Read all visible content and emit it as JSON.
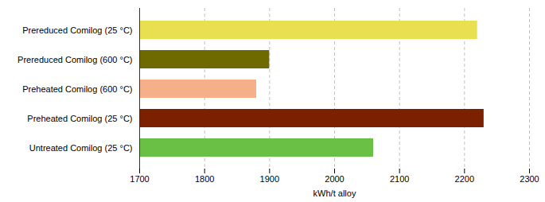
{
  "chart_data": {
    "type": "bar",
    "orientation": "horizontal",
    "categories": [
      "Untreated Comilog (25 °C)",
      "Preheated Comilog (25 °C)",
      "Preheated Comilog (600 °C)",
      "Prereduced Comilog (600 °C)",
      "Prereduced Comilog (25 °C)"
    ],
    "values": [
      2060,
      2230,
      1880,
      1900,
      2220
    ],
    "colors": [
      "#6abf45",
      "#7b2000",
      "#f5b08a",
      "#6e6a00",
      "#e8e050"
    ],
    "xlim": [
      1700,
      2300
    ],
    "xticks": [
      1700,
      1800,
      1900,
      2000,
      2100,
      2200,
      2300
    ],
    "xlabel": "kWh/t alloy",
    "grid": true
  }
}
